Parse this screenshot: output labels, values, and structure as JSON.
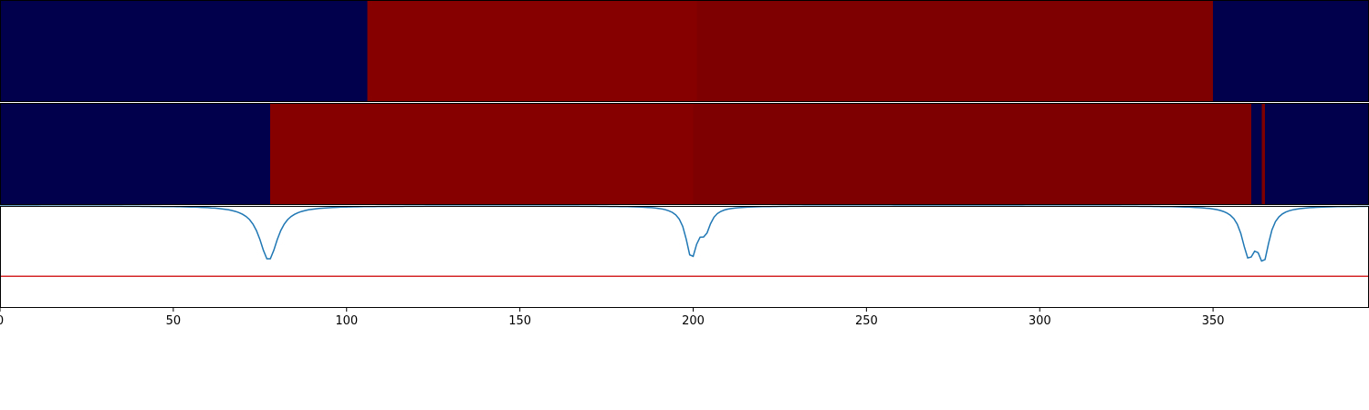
{
  "chart_data": [
    {
      "type": "heatmap",
      "xlim": [
        0,
        395
      ],
      "segments": [
        {
          "start": 0,
          "end": 106,
          "color": "#00004c"
        },
        {
          "start": 106,
          "end": 201,
          "color": "#860000"
        },
        {
          "start": 201,
          "end": 350,
          "color": "#7e0000"
        },
        {
          "start": 350,
          "end": 395,
          "color": "#00004c"
        }
      ]
    },
    {
      "type": "heatmap",
      "xlim": [
        0,
        395
      ],
      "segments": [
        {
          "start": 0,
          "end": 78,
          "color": "#00004c"
        },
        {
          "start": 78,
          "end": 200,
          "color": "#860000"
        },
        {
          "start": 200,
          "end": 361,
          "color": "#7e0000"
        },
        {
          "start": 361,
          "end": 364,
          "color": "#00004c"
        },
        {
          "start": 364,
          "end": 365,
          "color": "#7e0000"
        },
        {
          "start": 365,
          "end": 395,
          "color": "#00004c"
        }
      ]
    },
    {
      "type": "line",
      "xlim": [
        0,
        395
      ],
      "ylim": [
        0,
        1
      ],
      "xticks": [
        0,
        50,
        100,
        150,
        200,
        250,
        300,
        350
      ],
      "threshold": 0.31,
      "threshold_color": "#d62728",
      "line_color": "#1f77b4",
      "baseline": 1.0,
      "dips": [
        {
          "center": 77.5,
          "depth": 0.53,
          "width": 3.2
        },
        {
          "center": 199.5,
          "depth": 0.48,
          "width": 2.0
        },
        {
          "center": 203.5,
          "depth": 0.2,
          "width": 1.8
        },
        {
          "center": 360.2,
          "depth": 0.44,
          "width": 2.3
        },
        {
          "center": 364.6,
          "depth": 0.46,
          "width": 2.0
        }
      ]
    }
  ]
}
